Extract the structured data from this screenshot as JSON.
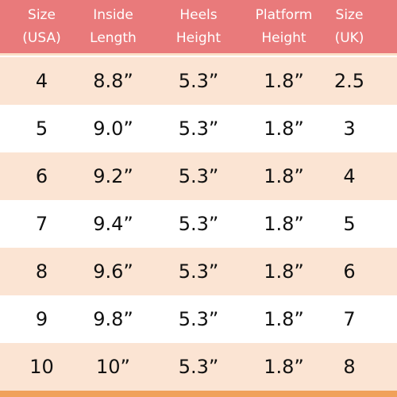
{
  "colors": {
    "header_bg": "#e97a7b",
    "header_text": "#ffffff",
    "row_shaded": "#fbe4d3",
    "row_plain": "#ffffff",
    "edge": "#f0a15a"
  },
  "table": {
    "headers": [
      {
        "line1": "Size",
        "line2": "(USA)"
      },
      {
        "line1": "Inside",
        "line2": "Length"
      },
      {
        "line1": "Heels",
        "line2": "Height"
      },
      {
        "line1": "Platform",
        "line2": "Height"
      },
      {
        "line1": "Size",
        "line2": "(UK)"
      }
    ],
    "rows": [
      [
        "4",
        "8.8”",
        "5.3”",
        "1.8”",
        "2.5"
      ],
      [
        "5",
        "9.0”",
        "5.3”",
        "1.8”",
        "3"
      ],
      [
        "6",
        "9.2”",
        "5.3”",
        "1.8”",
        "4"
      ],
      [
        "7",
        "9.4”",
        "5.3”",
        "1.8”",
        "5"
      ],
      [
        "8",
        "9.6”",
        "5.3”",
        "1.8”",
        "6"
      ],
      [
        "9",
        "9.8”",
        "5.3”",
        "1.8”",
        "7"
      ],
      [
        "10",
        "10”",
        "5.3”",
        "1.8”",
        "8"
      ]
    ]
  }
}
